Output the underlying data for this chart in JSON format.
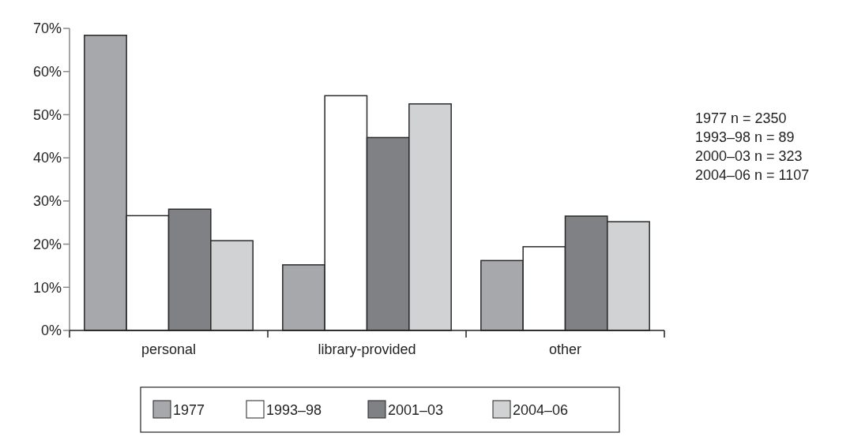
{
  "chart_data": {
    "type": "bar",
    "categories": [
      "personal",
      "library-provided",
      "other"
    ],
    "series": [
      {
        "name": "1977",
        "color": "#a7a8ab",
        "values": [
          68.4,
          15.2,
          16.2
        ]
      },
      {
        "name": "1993–98",
        "color": "#ffffff",
        "values": [
          26.6,
          54.4,
          19.4
        ]
      },
      {
        "name": "2001–03",
        "color": "#808184",
        "values": [
          28.1,
          44.7,
          26.5
        ]
      },
      {
        "name": "2004–06",
        "color": "#d1d2d4",
        "values": [
          20.8,
          52.5,
          25.2
        ]
      }
    ],
    "ylim": [
      0,
      70
    ],
    "yticks": [
      {
        "value": 0,
        "label": "0%"
      },
      {
        "value": 10,
        "label": "10%"
      },
      {
        "value": 20,
        "label": "20%"
      },
      {
        "value": 30,
        "label": "30%"
      },
      {
        "value": 40,
        "label": "40%"
      },
      {
        "value": 50,
        "label": "50%"
      },
      {
        "value": 60,
        "label": "60%"
      },
      {
        "value": 70,
        "label": "70%"
      }
    ],
    "annotations": [
      "1977 n = 2350",
      "1993–98 n = 89",
      "2000–03 n = 323",
      "2004–06 n = 1107"
    ],
    "legend": "bottom",
    "grid": false
  }
}
